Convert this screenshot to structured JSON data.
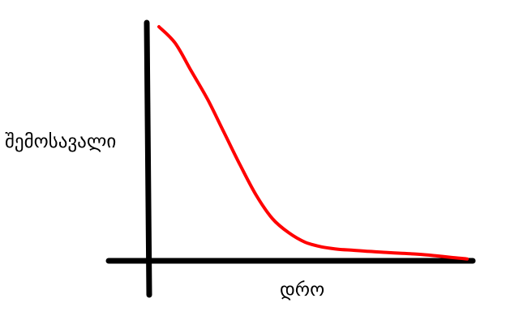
{
  "chart_data": {
    "type": "line",
    "xlabel": "დრო",
    "ylabel": "შემოსავალი",
    "grid": false,
    "legend": "none",
    "xlim": [
      0,
      100
    ],
    "ylim": [
      0,
      100
    ],
    "series": [
      {
        "color": "#ff0000",
        "x": [
          3,
          8,
          13,
          18,
          23,
          28,
          33,
          38,
          43,
          48,
          53,
          58,
          63,
          68,
          73,
          78,
          83,
          88,
          93,
          98
        ],
        "y": [
          100,
          93,
          81,
          69,
          55,
          41,
          28,
          18,
          12,
          8,
          6,
          5,
          4.5,
          4,
          3.6,
          3.2,
          2.8,
          2.2,
          1.5,
          0.8
        ]
      }
    ]
  }
}
